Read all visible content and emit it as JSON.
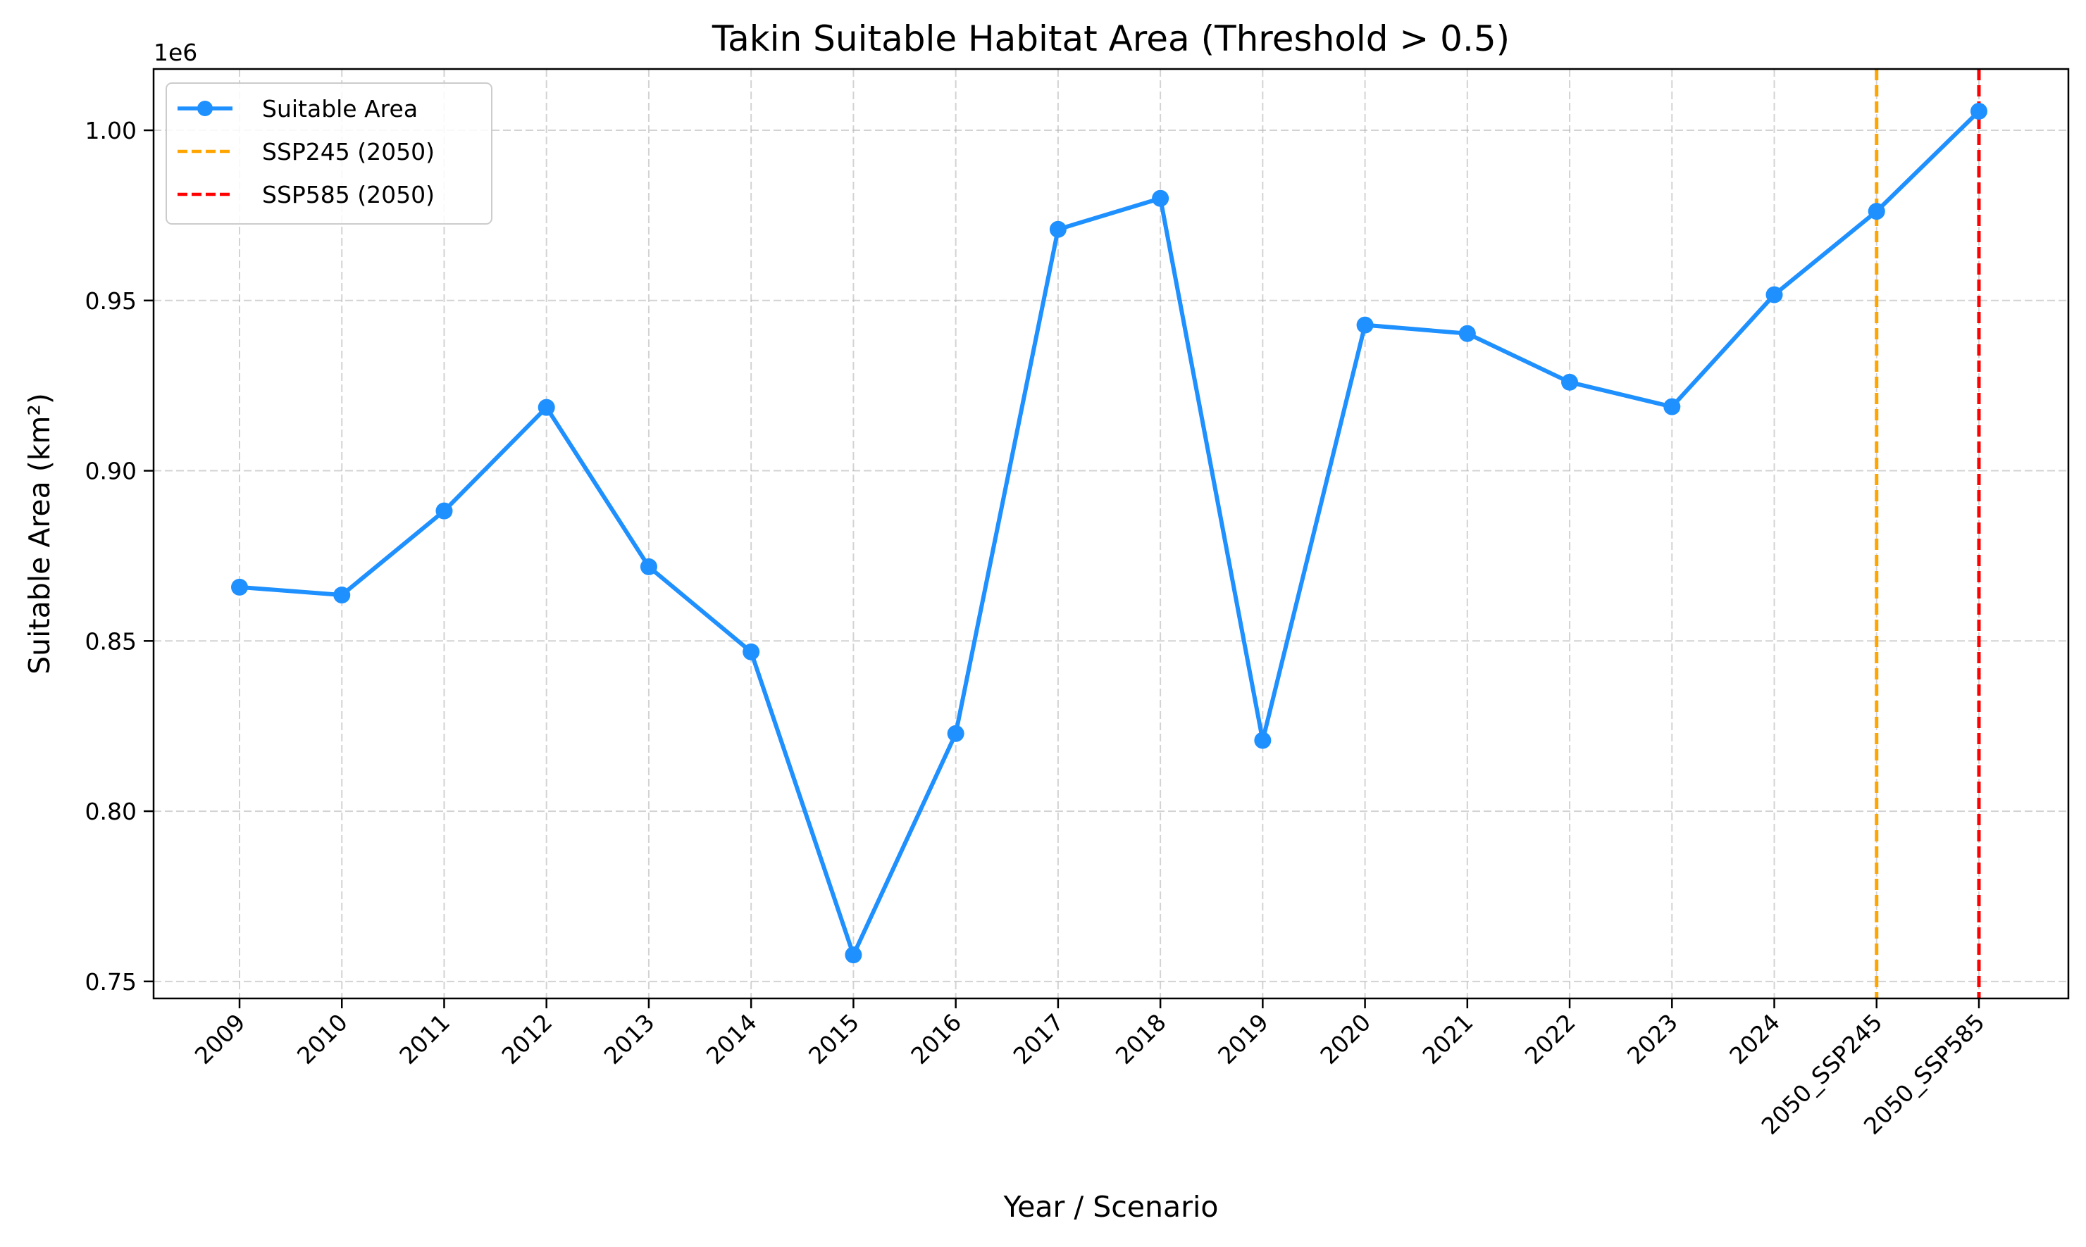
{
  "chart_data": {
    "type": "line",
    "title": "Takin Suitable Habitat Area (Threshold > 0.5)",
    "xlabel": "Year / Scenario",
    "ylabel": "Suitable Area (km²)",
    "y_offset_text": "1e6",
    "categories": [
      "2009",
      "2010",
      "2011",
      "2012",
      "2013",
      "2014",
      "2015",
      "2016",
      "2017",
      "2018",
      "2019",
      "2020",
      "2021",
      "2022",
      "2023",
      "2024",
      "2050_SSP245",
      "2050_SSP585"
    ],
    "series": [
      {
        "name": "Suitable Area",
        "color": "#1e90ff",
        "marker": "circle",
        "values": [
          865800,
          863500,
          888200,
          918600,
          871800,
          846800,
          757800,
          822800,
          970900,
          980000,
          820800,
          942800,
          940300,
          926000,
          918800,
          951700,
          976200,
          1005600
        ]
      }
    ],
    "vertical_lines": [
      {
        "name": "SSP245 (2050)",
        "category": "2050_SSP245",
        "color": "#ffa500",
        "style": "dashed"
      },
      {
        "name": "SSP585 (2050)",
        "category": "2050_SSP585",
        "color": "#ff0000",
        "style": "dashed"
      }
    ],
    "ylim": [
      745000,
      1018000
    ],
    "yticks": [
      750000,
      800000,
      850000,
      900000,
      950000,
      1000000
    ],
    "ytick_labels": [
      "0.75",
      "0.80",
      "0.85",
      "0.90",
      "0.95",
      "1.00"
    ],
    "grid": true,
    "legend_position": "top-left"
  }
}
